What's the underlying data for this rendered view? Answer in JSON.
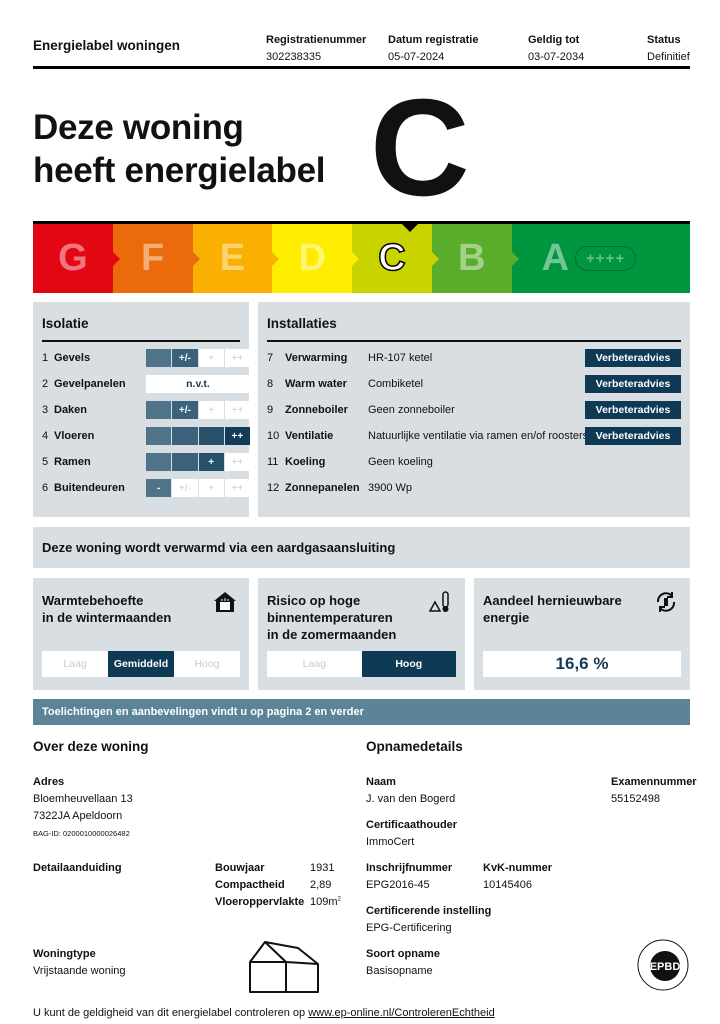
{
  "header": {
    "title": "Energielabel woningen",
    "columns": [
      {
        "label": "Registratienummer",
        "value": "302238335"
      },
      {
        "label": "Datum registratie",
        "value": "05-07-2024"
      },
      {
        "label": "Geldig tot",
        "value": "03-07-2034"
      },
      {
        "label": "Status",
        "value": "Definitief"
      }
    ]
  },
  "hero": {
    "line1": "Deze woning",
    "line2": "heeft energielabel",
    "label": "C"
  },
  "scale": {
    "current": "C",
    "classes": [
      {
        "letter": "G",
        "color": "#e30613"
      },
      {
        "letter": "F",
        "color": "#ea6a0c"
      },
      {
        "letter": "E",
        "color": "#f9b000"
      },
      {
        "letter": "D",
        "color": "#ffed00"
      },
      {
        "letter": "C",
        "color": "#c8d300"
      },
      {
        "letter": "B",
        "color": "#5aac2b"
      },
      {
        "letter": "A",
        "color": "#00963f",
        "extra": "++++"
      }
    ]
  },
  "isolatie": {
    "title": "Isolatie",
    "levels": [
      "-",
      "+/-",
      "+",
      "++"
    ],
    "items": [
      {
        "num": "1",
        "name": "Gevels",
        "level": 1
      },
      {
        "num": "2",
        "name": "Gevelpanelen",
        "value": "n.v.t."
      },
      {
        "num": "3",
        "name": "Daken",
        "level": 1
      },
      {
        "num": "4",
        "name": "Vloeren",
        "level": 3
      },
      {
        "num": "5",
        "name": "Ramen",
        "level": 2
      },
      {
        "num": "6",
        "name": "Buitendeuren",
        "level": 0
      }
    ]
  },
  "installaties": {
    "title": "Installaties",
    "button_label": "Verbeteradvies",
    "items": [
      {
        "num": "7",
        "name": "Verwarming",
        "value": "HR-107 ketel",
        "advice": true
      },
      {
        "num": "8",
        "name": "Warm water",
        "value": "Combiketel",
        "advice": true
      },
      {
        "num": "9",
        "name": "Zonneboiler",
        "value": "Geen zonneboiler",
        "advice": true
      },
      {
        "num": "10",
        "name": "Ventilatie",
        "value": "Natuurlijke ventilatie via ramen en/of roosters",
        "advice": true
      },
      {
        "num": "11",
        "name": "Koeling",
        "value": "Geen koeling",
        "advice": false
      },
      {
        "num": "12",
        "name": "Zonnepanelen",
        "value": "3900 Wp",
        "advice": false
      }
    ]
  },
  "heating_notice": "Deze woning wordt verwarmd via een aardgasaansluiting",
  "indicators": {
    "warmte": {
      "title1": "Warmtebehoefte",
      "title2": "in de wintermaanden",
      "options": [
        "Laag",
        "Gemiddeld",
        "Hoog"
      ],
      "selected": 1,
      "icon": "house-heat-icon"
    },
    "risico": {
      "title1": "Risico op hoge",
      "title2": "binnentemperaturen",
      "title3": "in de zomermaanden",
      "options": [
        "Laag",
        "Hoog"
      ],
      "selected": 1,
      "icon": "thermometer-warning-icon"
    },
    "hernieuwbaar": {
      "title1": "Aandeel hernieuwbare",
      "title2": "energie",
      "value": "16,6 %",
      "icon": "renewable-cycle-icon"
    }
  },
  "band": "Toelichtingen en aanbevelingen vindt u op pagina 2 en verder",
  "woning": {
    "title": "Over deze woning",
    "adres_label": "Adres",
    "street": "Bloemheuvellaan 13",
    "city": "7322JA Apeldoorn",
    "bag": "BAG-ID: 0200010000026482",
    "detail_label": "Detailaanduiding",
    "bouwjaar_label": "Bouwjaar",
    "bouwjaar": "1931",
    "compact_label": "Compactheid",
    "compact": "2,89",
    "opp_label": "Vloeroppervlakte",
    "opp": "109m",
    "opp_sup": "2",
    "type_label": "Woningtype",
    "type": "Vrijstaande woning"
  },
  "opname": {
    "title": "Opnamedetails",
    "naam_label": "Naam",
    "naam": "J. van den Bogerd",
    "exam_label": "Examennummer",
    "exam": "55152498",
    "cert_label": "Certificaathouder",
    "cert": "ImmoCert",
    "inschr_label": "Inschrijfnummer",
    "inschr": "EPG2016-45",
    "kvk_label": "KvK-nummer",
    "kvk": "10145406",
    "inst_label": "Certificerende instelling",
    "inst": "EPG-Certificering",
    "soort_label": "Soort opname",
    "soort": "Basisopname",
    "logo_text": "EPBD"
  },
  "footer": {
    "text": "U kunt de geldigheid van dit energielabel controleren op ",
    "link": "www.ep-online.nl/ControlerenEchtheid"
  }
}
